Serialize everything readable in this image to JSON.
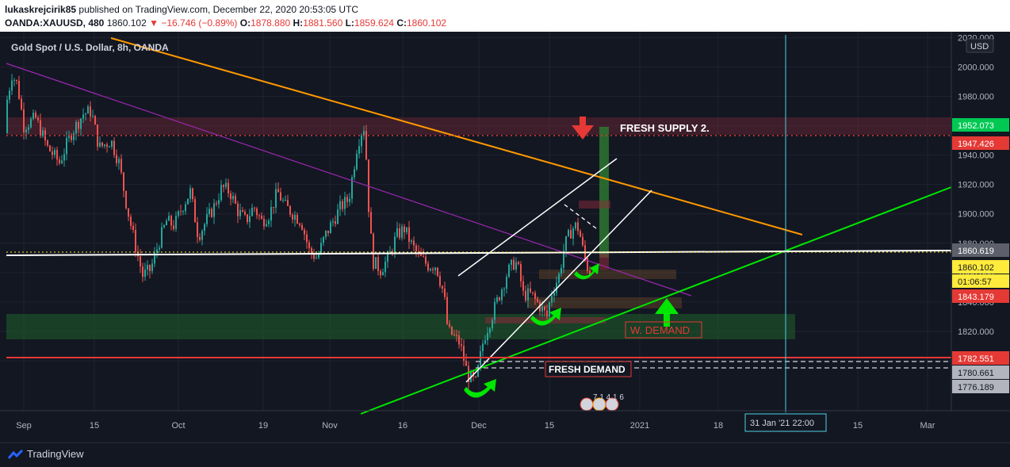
{
  "header": {
    "author": "lukaskrejcirik85",
    "published": "published on TradingView.com, December 22, 2020 20:53:05 UTC",
    "symbol": "OANDA:XAUUSD, 480",
    "price": "1860.102",
    "change": "−16.746 (−0.89%)",
    "o_label": "O:",
    "o_val": "1878.880",
    "h_label": "H:",
    "h_val": "1881.560",
    "l_label": "L:",
    "l_val": "1859.624",
    "c_label": "C:",
    "c_val": "1860.102"
  },
  "chart_title": "Gold Spot / U.S. Dollar, 8h, OANDA",
  "currency_button": "USD",
  "footer_brand": "TradingView",
  "colors": {
    "background": "#131722",
    "up": "#26a69a",
    "down": "#ef5350",
    "orange_line": "#ff9800",
    "green_line": "#00e600",
    "purple_line": "#9c27b0",
    "accent_green": "#00c853"
  },
  "chart_data": {
    "type": "candlestick",
    "title": "Gold Spot / U.S. Dollar, 8h, OANDA",
    "y_range": [
      1766,
      2024
    ],
    "price_axis_ticks": [
      2020,
      2000,
      1980,
      1960,
      1940,
      1920,
      1900,
      1880,
      1860,
      1840,
      1820,
      1800
    ],
    "price_axis_tick_labels": [
      "2020.000",
      "2000.000",
      "1980.000",
      "1960.000",
      "1940.000",
      "1920.000",
      "1900.000",
      "1880.000",
      "1860.000",
      "1840.000",
      "1820.000",
      "1800.000"
    ],
    "time_axis_labels": [
      "Sep",
      "15",
      "Oct",
      "19",
      "Nov",
      "16",
      "Dec",
      "15",
      "2021",
      "18",
      "15",
      "Mar"
    ],
    "price_markers": [
      {
        "label": "1952.073",
        "color": "#00c853"
      },
      {
        "label": "1947.426",
        "color": "#e53935"
      },
      {
        "label": "1860.619",
        "color": "#5d606b"
      },
      {
        "label": "1860.102",
        "color": "#ffeb3b"
      },
      {
        "label": "01:06:57",
        "color": "#ffeb3b"
      },
      {
        "label": "1843.179",
        "color": "#e53935"
      },
      {
        "label": "1782.551",
        "color": "#e53935"
      },
      {
        "label": "1780.661",
        "color": "#b2b5be"
      },
      {
        "label": "1776.189",
        "color": "#b2b5be"
      }
    ],
    "crosshair_time_label": "31 Jan '21   22:00",
    "annotations": [
      "FRESH SUPPLY 2.",
      "W. DEMAND",
      "FRESH DEMAND"
    ],
    "events_label": "7 1 4 1 6",
    "price_path_waypoints": [
      [
        0,
        1955
      ],
      [
        8,
        1975
      ],
      [
        15,
        1995
      ],
      [
        22,
        1988
      ],
      [
        30,
        1960
      ],
      [
        45,
        1965
      ],
      [
        60,
        1945
      ],
      [
        75,
        1935
      ],
      [
        90,
        1955
      ],
      [
        105,
        1968
      ],
      [
        115,
        1970
      ],
      [
        125,
        1945
      ],
      [
        140,
        1950
      ],
      [
        150,
        1935
      ],
      [
        160,
        1905
      ],
      [
        170,
        1880
      ],
      [
        180,
        1858
      ],
      [
        190,
        1862
      ],
      [
        200,
        1880
      ],
      [
        210,
        1895
      ],
      [
        220,
        1892
      ],
      [
        230,
        1905
      ],
      [
        240,
        1915
      ],
      [
        250,
        1885
      ],
      [
        260,
        1895
      ],
      [
        270,
        1905
      ],
      [
        280,
        1918
      ],
      [
        290,
        1915
      ],
      [
        300,
        1902
      ],
      [
        310,
        1895
      ],
      [
        320,
        1905
      ],
      [
        330,
        1895
      ],
      [
        340,
        1900
      ],
      [
        350,
        1915
      ],
      [
        360,
        1905
      ],
      [
        370,
        1900
      ],
      [
        380,
        1895
      ],
      [
        390,
        1875
      ],
      [
        400,
        1870
      ],
      [
        410,
        1885
      ],
      [
        420,
        1895
      ],
      [
        430,
        1905
      ],
      [
        440,
        1910
      ],
      [
        450,
        1945
      ],
      [
        455,
        1955
      ],
      [
        460,
        1960
      ],
      [
        465,
        1905
      ],
      [
        470,
        1868
      ],
      [
        480,
        1862
      ],
      [
        490,
        1870
      ],
      [
        500,
        1885
      ],
      [
        510,
        1890
      ],
      [
        520,
        1878
      ],
      [
        530,
        1870
      ],
      [
        540,
        1865
      ],
      [
        550,
        1865
      ],
      [
        560,
        1845
      ],
      [
        565,
        1820
      ],
      [
        570,
        1818
      ],
      [
        580,
        1812
      ],
      [
        590,
        1790
      ],
      [
        600,
        1785
      ],
      [
        605,
        1800
      ],
      [
        610,
        1815
      ],
      [
        620,
        1830
      ],
      [
        630,
        1845
      ],
      [
        640,
        1860
      ],
      [
        650,
        1868
      ],
      [
        655,
        1860
      ],
      [
        660,
        1845
      ],
      [
        670,
        1845
      ],
      [
        680,
        1838
      ],
      [
        690,
        1830
      ],
      [
        695,
        1845
      ],
      [
        705,
        1858
      ],
      [
        712,
        1878
      ],
      [
        720,
        1888
      ],
      [
        725,
        1892
      ],
      [
        730,
        1890
      ],
      [
        735,
        1876
      ],
      [
        740,
        1865
      ],
      [
        745,
        1860
      ]
    ]
  }
}
